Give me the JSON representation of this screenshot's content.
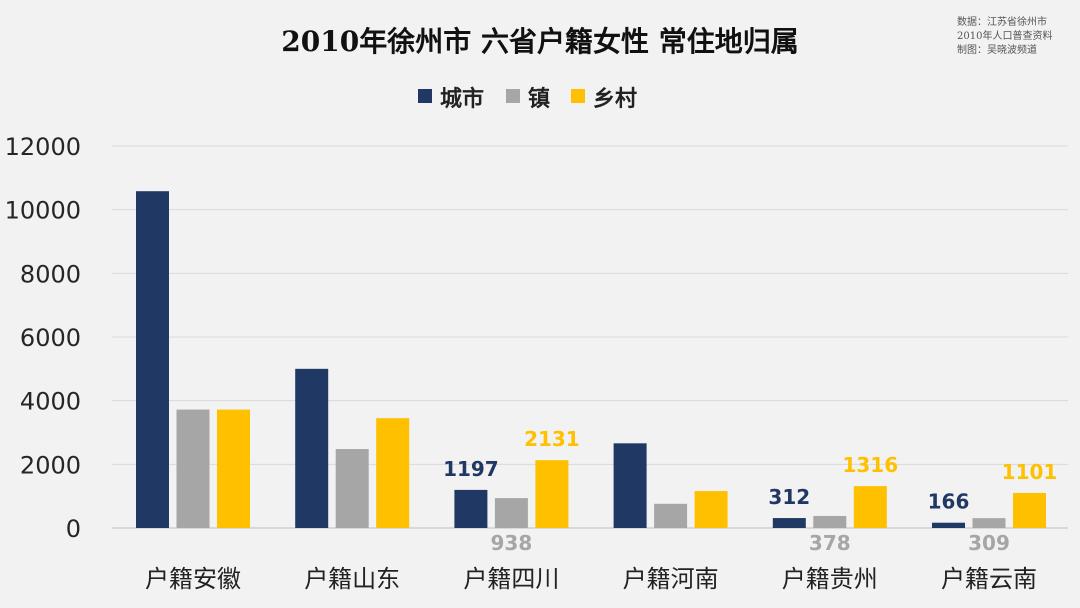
{
  "source": {
    "line1": "数据：江苏省徐州市",
    "line2": "2010年人口普查资料",
    "line3": "制图：吴晓波频道"
  },
  "chart_data": {
    "type": "bar",
    "title": "2010年徐州市 六省户籍女性 常住地归属",
    "xlabel": "",
    "ylabel": "",
    "ylim": [
      0,
      12000
    ],
    "yticks": [
      0,
      2000,
      4000,
      6000,
      8000,
      10000,
      12000
    ],
    "grid": true,
    "legend_position": "top-center",
    "categories": [
      "户籍安徽",
      "户籍山东",
      "户籍四川",
      "户籍河南",
      "户籍贵州",
      "户籍云南"
    ],
    "series": [
      {
        "name": "城市",
        "color": "#203864",
        "values": [
          10580,
          5000,
          1197,
          2660,
          312,
          166
        ]
      },
      {
        "name": "镇",
        "color": "#a6a6a6",
        "values": [
          3720,
          2480,
          938,
          760,
          378,
          309
        ]
      },
      {
        "name": "乡村",
        "color": "#ffc000",
        "values": [
          3720,
          3450,
          2131,
          1160,
          1316,
          1101
        ]
      }
    ],
    "data_labels": [
      {
        "category": "户籍四川",
        "series": "城市",
        "text": "1197"
      },
      {
        "category": "户籍四川",
        "series": "镇",
        "text": "938"
      },
      {
        "category": "户籍四川",
        "series": "乡村",
        "text": "2131"
      },
      {
        "category": "户籍贵州",
        "series": "城市",
        "text": "312"
      },
      {
        "category": "户籍贵州",
        "series": "镇",
        "text": "378"
      },
      {
        "category": "户籍贵州",
        "series": "乡村",
        "text": "1316"
      },
      {
        "category": "户籍云南",
        "series": "城市",
        "text": "166"
      },
      {
        "category": "户籍云南",
        "series": "镇",
        "text": "309"
      },
      {
        "category": "户籍云南",
        "series": "乡村",
        "text": "1101"
      }
    ]
  }
}
